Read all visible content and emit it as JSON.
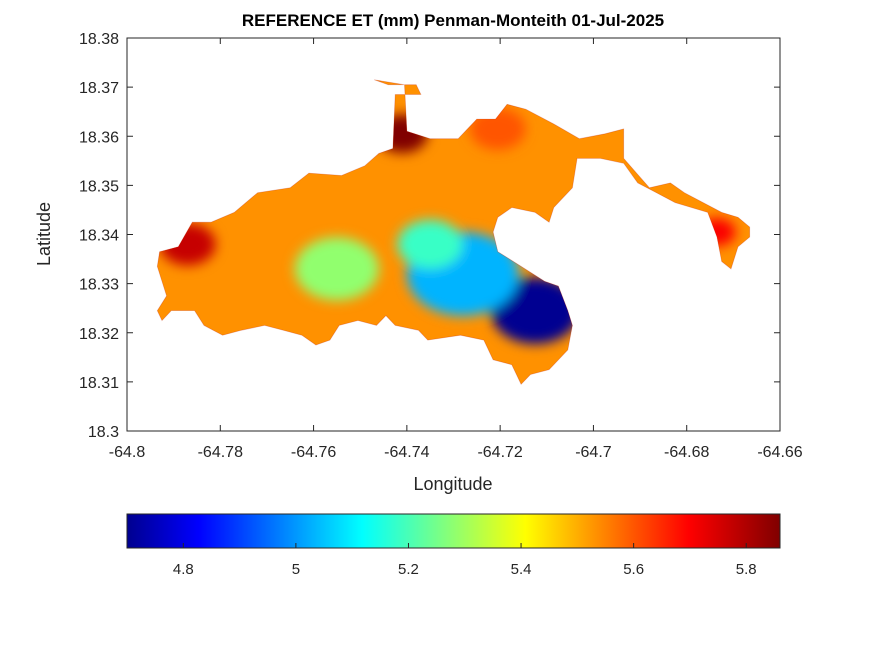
{
  "chart_data": {
    "type": "heatmap",
    "title": "REFERENCE ET (mm) Penman-Monteith 01-Jul-2025",
    "xlabel": "Longitude",
    "ylabel": "Latitude",
    "xlim": [
      -64.8,
      -64.66
    ],
    "ylim": [
      18.3,
      18.38
    ],
    "x_ticks": [
      "-64.8",
      "-64.78",
      "-64.76",
      "-64.74",
      "-64.72",
      "-64.7",
      "-64.68",
      "-64.66"
    ],
    "y_ticks": [
      "18.3",
      "18.31",
      "18.32",
      "18.33",
      "18.34",
      "18.35",
      "18.36",
      "18.37",
      "18.38"
    ],
    "grid": false,
    "colormap": "jet",
    "colorbar": {
      "location": "bottom",
      "range": [
        4.7,
        5.86
      ],
      "ticks": [
        "4.8",
        "5",
        "5.2",
        "5.4",
        "5.6",
        "5.8"
      ]
    },
    "region_outline": [
      [
        -64.793,
        18.3365
      ],
      [
        -64.789,
        18.3375
      ],
      [
        -64.786,
        18.3425
      ],
      [
        -64.782,
        18.3425
      ],
      [
        -64.777,
        18.3445
      ],
      [
        -64.772,
        18.3485
      ],
      [
        -64.765,
        18.3495
      ],
      [
        -64.761,
        18.3525
      ],
      [
        -64.754,
        18.352
      ],
      [
        -64.749,
        18.354
      ],
      [
        -64.746,
        18.3565
      ],
      [
        -64.743,
        18.3575
      ],
      [
        -64.7425,
        18.3685
      ],
      [
        -64.737,
        18.3685
      ],
      [
        -64.738,
        18.3705
      ],
      [
        -64.744,
        18.3705
      ],
      [
        -64.747,
        18.3715
      ],
      [
        -64.7405,
        18.3705
      ],
      [
        -64.74,
        18.361
      ],
      [
        -64.735,
        18.3595
      ],
      [
        -64.729,
        18.3595
      ],
      [
        -64.725,
        18.3635
      ],
      [
        -64.721,
        18.3635
      ],
      [
        -64.7185,
        18.3665
      ],
      [
        -64.7145,
        18.3655
      ],
      [
        -64.7085,
        18.3625
      ],
      [
        -64.703,
        18.3595
      ],
      [
        -64.6975,
        18.3605
      ],
      [
        -64.6935,
        18.3615
      ],
      [
        -64.6935,
        18.3555
      ],
      [
        -64.688,
        18.3495
      ],
      [
        -64.6835,
        18.3505
      ],
      [
        -64.6805,
        18.3485
      ],
      [
        -64.6775,
        18.347
      ],
      [
        -64.6725,
        18.3445
      ],
      [
        -64.669,
        18.3435
      ],
      [
        -64.6665,
        18.3415
      ],
      [
        -64.6665,
        18.3395
      ],
      [
        -64.669,
        18.3375
      ],
      [
        -64.6705,
        18.333
      ],
      [
        -64.6725,
        18.3345
      ],
      [
        -64.6735,
        18.3395
      ],
      [
        -64.6755,
        18.3445
      ],
      [
        -64.6825,
        18.3465
      ],
      [
        -64.6865,
        18.3485
      ],
      [
        -64.6905,
        18.3505
      ],
      [
        -64.6935,
        18.3545
      ],
      [
        -64.6985,
        18.3555
      ],
      [
        -64.7035,
        18.3555
      ],
      [
        -64.7045,
        18.3495
      ],
      [
        -64.7085,
        18.3455
      ],
      [
        -64.7095,
        18.3425
      ],
      [
        -64.7125,
        18.3445
      ],
      [
        -64.7175,
        18.3455
      ],
      [
        -64.7205,
        18.3435
      ],
      [
        -64.7215,
        18.3405
      ],
      [
        -64.7205,
        18.3365
      ],
      [
        -64.7155,
        18.3335
      ],
      [
        -64.7105,
        18.3305
      ],
      [
        -64.7075,
        18.3295
      ],
      [
        -64.7055,
        18.3245
      ],
      [
        -64.7045,
        18.3215
      ],
      [
        -64.7055,
        18.3165
      ],
      [
        -64.7095,
        18.3125
      ],
      [
        -64.7135,
        18.3115
      ],
      [
        -64.7155,
        18.3095
      ],
      [
        -64.7175,
        18.3135
      ],
      [
        -64.7215,
        18.3145
      ],
      [
        -64.7235,
        18.3185
      ],
      [
        -64.7285,
        18.3195
      ],
      [
        -64.7355,
        18.3185
      ],
      [
        -64.7375,
        18.3205
      ],
      [
        -64.7425,
        18.3215
      ],
      [
        -64.7445,
        18.3235
      ],
      [
        -64.7465,
        18.3215
      ],
      [
        -64.7505,
        18.3225
      ],
      [
        -64.7545,
        18.3215
      ],
      [
        -64.7565,
        18.3185
      ],
      [
        -64.7595,
        18.3175
      ],
      [
        -64.7625,
        18.3195
      ],
      [
        -64.7665,
        18.3205
      ],
      [
        -64.7705,
        18.3215
      ],
      [
        -64.7755,
        18.3205
      ],
      [
        -64.7795,
        18.3195
      ],
      [
        -64.7835,
        18.3215
      ],
      [
        -64.7855,
        18.3245
      ],
      [
        -64.7905,
        18.3245
      ],
      [
        -64.7925,
        18.3225
      ],
      [
        -64.7935,
        18.3245
      ],
      [
        -64.7915,
        18.3275
      ],
      [
        -64.7935,
        18.3335
      ]
    ],
    "hotspots": [
      {
        "label": "blue-min",
        "x": -64.7125,
        "y": 18.3245,
        "value": 4.72,
        "radius": 0.0095
      },
      {
        "label": "cyan-belt",
        "x": -64.728,
        "y": 18.332,
        "value": 5.05,
        "radius": 0.012
      },
      {
        "label": "green-west",
        "x": -64.755,
        "y": 18.333,
        "value": 5.3,
        "radius": 0.009
      },
      {
        "label": "green-center",
        "x": -64.735,
        "y": 18.338,
        "value": 5.2,
        "radius": 0.007
      },
      {
        "label": "darkred-north",
        "x": -64.741,
        "y": 18.3605,
        "value": 5.86,
        "radius": 0.0055
      },
      {
        "label": "red-nw",
        "x": -64.787,
        "y": 18.338,
        "value": 5.78,
        "radius": 0.006
      },
      {
        "label": "red-east",
        "x": -64.6735,
        "y": 18.3405,
        "value": 5.72,
        "radius": 0.004
      },
      {
        "label": "red-ridge",
        "x": -64.7205,
        "y": 18.3615,
        "value": 5.62,
        "radius": 0.006
      }
    ],
    "base_value": 5.55
  }
}
